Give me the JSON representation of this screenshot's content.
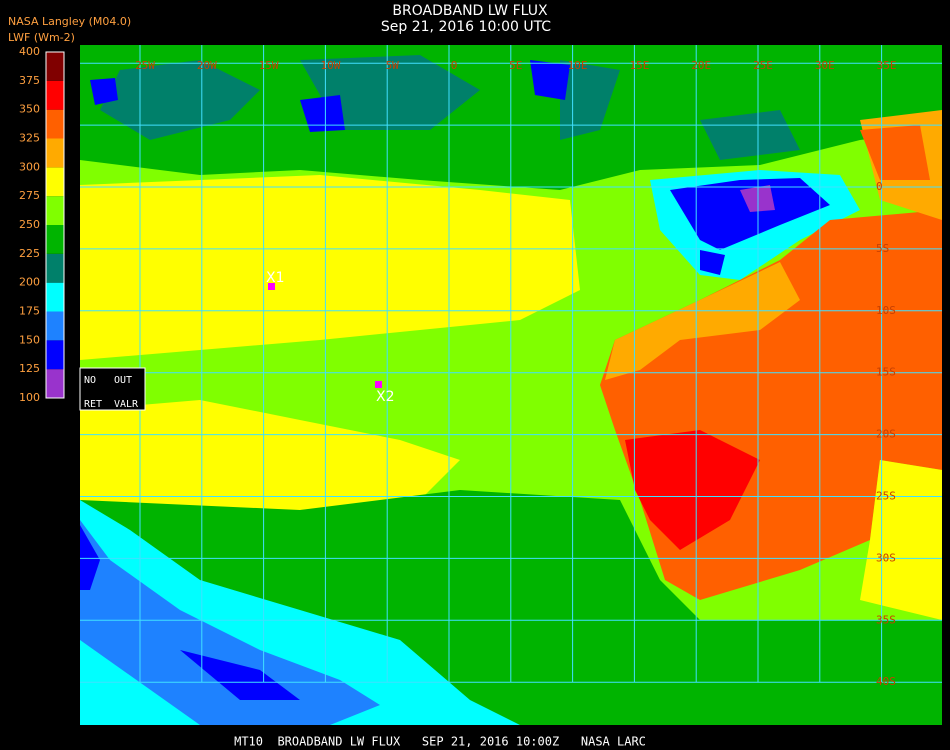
{
  "header": {
    "title": "BROADBAND LW FLUX",
    "subtitle": "Sep 21, 2016 10:00 UTC",
    "source": "NASA Langley (M04.0)",
    "units": "LWF (Wm-2)"
  },
  "colorbar": {
    "ticks": [
      100,
      125,
      150,
      175,
      200,
      225,
      250,
      275,
      300,
      325,
      350,
      375,
      400
    ],
    "colors": [
      "#9933cc",
      "#0000ff",
      "#1e82ff",
      "#00ffff",
      "#00806a",
      "#00b400",
      "#80ff00",
      "#ffff00",
      "#ffaa00",
      "#ff6000",
      "#ff0000",
      "#800000"
    ]
  },
  "map": {
    "lon_labels": [
      "25W",
      "20W",
      "15W",
      "10W",
      "5W",
      "0",
      "5E",
      "10E",
      "15E",
      "20E",
      "25E",
      "30E",
      "35E"
    ],
    "lat_labels": [
      "0",
      "5S",
      "10S",
      "15S",
      "20S",
      "25S",
      "30S",
      "35S",
      "40S"
    ],
    "legend_box": [
      "NO",
      "OUT",
      "RET",
      "VALR"
    ],
    "markers": [
      "X1",
      "X2"
    ]
  },
  "footer": "MT10  BROADBAND LW FLUX   SEP 21, 2016 10:00Z   NASA LARC"
}
